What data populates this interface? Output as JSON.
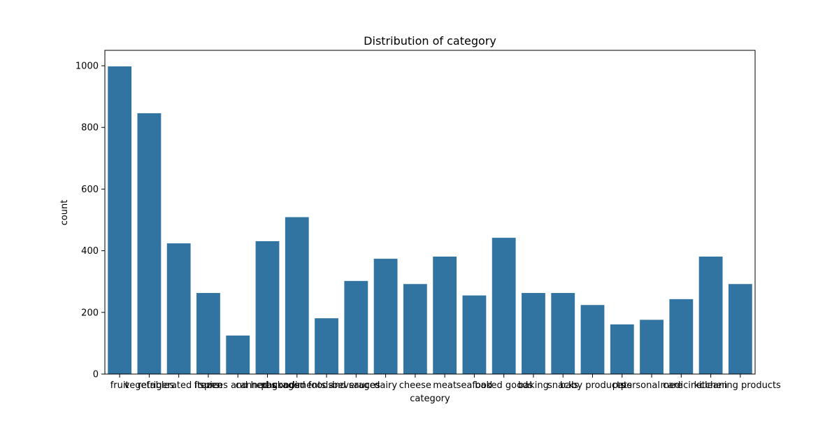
{
  "chart_data": {
    "type": "bar",
    "title": "Distribution of category",
    "xlabel": "category",
    "ylabel": "count",
    "ylim": [
      0,
      1050
    ],
    "yticks": [
      0,
      200,
      400,
      600,
      800,
      1000
    ],
    "grid": false,
    "bar_color": "#3274a1",
    "categories": [
      "fruit",
      "vegetables",
      "refrigerated items",
      "frozen",
      "spices and herbs",
      "canned goods",
      "packaged foods",
      "condiments and sauces",
      "beverages",
      "dairy",
      "cheese",
      "meat",
      "seafood",
      "baked goods",
      "baking",
      "snacks",
      "baby products",
      "pets",
      "personal care",
      "medicine",
      "kitchen",
      "cleaning products"
    ],
    "values": [
      998,
      846,
      424,
      263,
      125,
      431,
      509,
      181,
      302,
      374,
      292,
      381,
      255,
      442,
      263,
      263,
      224,
      161,
      176,
      243,
      381,
      292
    ]
  }
}
